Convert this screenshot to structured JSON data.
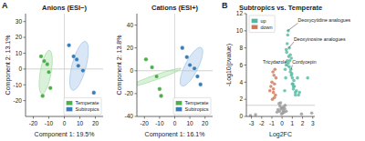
{
  "chart_data": [
    {
      "type": "scatter",
      "title": "Anions (ESI−)",
      "x_label": "Component 1: 19.5%",
      "y_label": "Component 2: 13.1%",
      "xlim": [
        -25,
        25
      ],
      "ylim": [
        -30,
        35
      ],
      "xticks": [
        -20,
        -10,
        0,
        10,
        20
      ],
      "yticks": [
        -20,
        -10,
        0,
        10,
        20,
        30
      ],
      "hline": 0,
      "vline": 0,
      "legend": "lower right",
      "annotations": [
        {
          "text": "A"
        }
      ],
      "series": [
        {
          "name": "Temperate",
          "color": "#4daf4a",
          "x": [
            -15,
            -13,
            -11,
            -10,
            -9,
            -14
          ],
          "values": [
            8,
            5,
            3,
            -2,
            -12,
            -17
          ],
          "ellipse": {
            "cx": -12.0,
            "cy": -2.0,
            "w": 7,
            "h": 28,
            "angle": -10,
            "color": "#a8dfa8"
          }
        },
        {
          "name": "Subtropics",
          "color": "#377eb8",
          "x": [
            3,
            6,
            8,
            9,
            12,
            19
          ],
          "values": [
            15,
            8,
            6,
            2,
            -1,
            -15
          ],
          "ellipse": {
            "cx": 9.5,
            "cy": 2.0,
            "w": 9,
            "h": 32,
            "angle": -15,
            "color": "#aac8e8"
          }
        }
      ]
    },
    {
      "type": "scatter",
      "title": "Cations (ESI+)",
      "x_label": "Component 1: 16.1%",
      "y_label": "Component 2: 13.8%",
      "xlim": [
        -25,
        25
      ],
      "ylim": [
        -40,
        50
      ],
      "xticks": [
        -20,
        -10,
        0,
        10,
        20
      ],
      "yticks": [
        -40,
        -20,
        0,
        20,
        40
      ],
      "hline": 0,
      "vline": 0,
      "legend": "lower right",
      "series": [
        {
          "name": "Temperate",
          "color": "#4daf4a",
          "x": [
            -19,
            -15,
            -12,
            -10,
            -9
          ],
          "values": [
            10,
            3,
            -5,
            -16,
            -22
          ],
          "ellipse": {
            "cx": -13.0,
            "cy": -6.0,
            "w": 4,
            "h": 38,
            "angle": -65,
            "color": "#a8dfa8"
          }
        },
        {
          "name": "Subtropics",
          "color": "#377eb8",
          "x": [
            5,
            8,
            10,
            13,
            15,
            17
          ],
          "values": [
            20,
            12,
            5,
            2,
            -5,
            -12
          ],
          "ellipse": {
            "cx": 11.0,
            "cy": 3.5,
            "w": 9,
            "h": 36,
            "angle": -20,
            "color": "#aac8e8"
          }
        }
      ]
    },
    {
      "type": "scatter",
      "title": "Subtropics vs. Temperate",
      "x_label": "Log2FC",
      "y_label": "-Log10(pvalue)",
      "xlim": [
        -3.5,
        3.2
      ],
      "ylim": [
        0,
        12
      ],
      "xticks": [
        -3,
        -2,
        -1,
        0,
        1,
        2,
        3
      ],
      "yticks": [
        0,
        2,
        4,
        6,
        8,
        10,
        12
      ],
      "hline": 1.3,
      "legend": "upper left",
      "annotations": [
        {
          "text": "B"
        },
        {
          "text": "Deoxycytidine analogues",
          "x": 1.55,
          "y": 11.2,
          "px": 0.55,
          "py": 10.0
        },
        {
          "text": "Deoxyinosine analogues",
          "x": 1.15,
          "y": 9.0,
          "px": 0.65,
          "py": 8.0
        },
        {
          "text": "Tricydazole",
          "x": 0.55,
          "y": 6.3,
          "px": 0.6,
          "py": 5.8
        },
        {
          "text": "Cordycepin",
          "x": 1.0,
          "y": 6.3,
          "px": 0.9,
          "py": 5.5
        }
      ],
      "series": [
        {
          "name": "up",
          "color": "#52b8a0",
          "x": [
            0.25,
            0.35,
            0.4,
            0.45,
            0.5,
            0.55,
            0.6,
            0.65,
            0.7,
            0.75,
            0.8,
            0.85,
            0.9,
            0.95,
            1.0,
            1.05,
            1.1,
            1.15,
            1.2,
            1.3,
            1.4,
            1.5,
            1.6,
            1.7,
            2.5,
            0.3,
            0.5,
            0.7,
            0.9,
            1.1,
            0.4,
            0.6,
            0.8,
            1.0,
            1.3
          ],
          "values": [
            3.0,
            4.5,
            6.0,
            7.5,
            8.5,
            9.5,
            10.0,
            7.0,
            8.0,
            6.5,
            7.2,
            5.5,
            6.8,
            5.0,
            4.5,
            3.8,
            3.2,
            4.2,
            3.5,
            2.8,
            3.0,
            4.5,
            2.5,
            2.8,
            4.5,
            5.5,
            6.5,
            5.8,
            4.8,
            3.5,
            7.8,
            6.2,
            5.2,
            3.8,
            2.5
          ]
        },
        {
          "name": "down",
          "color": "#cc7755",
          "x": [
            -0.6,
            -0.7,
            -0.75,
            -0.8,
            -0.85,
            -0.9,
            -1.0,
            -1.1,
            -1.2,
            -0.65,
            -0.75,
            -0.85,
            -0.95
          ],
          "values": [
            4.5,
            5.5,
            3.8,
            4.8,
            3.2,
            5.2,
            4.0,
            3.5,
            3.0,
            2.5,
            2.2,
            2.8,
            2.0
          ]
        },
        {
          "color": "#999999",
          "x": [
            -0.3,
            -0.2,
            -0.1,
            0.0,
            0.1,
            0.2,
            0.3,
            -0.4,
            -0.15,
            0.05,
            -0.25,
            0.15,
            -0.05,
            0.25,
            1.9,
            -2.6,
            -3.1,
            2.9,
            -0.5,
            0.4
          ],
          "values": [
            1.5,
            1.2,
            0.9,
            1.0,
            0.7,
            0.5,
            1.3,
            0.8,
            1.6,
            0.4,
            0.6,
            1.1,
            0.3,
            0.9,
            0.3,
            0.2,
            0.1,
            0.4,
            0.5,
            0.6
          ]
        }
      ]
    }
  ]
}
